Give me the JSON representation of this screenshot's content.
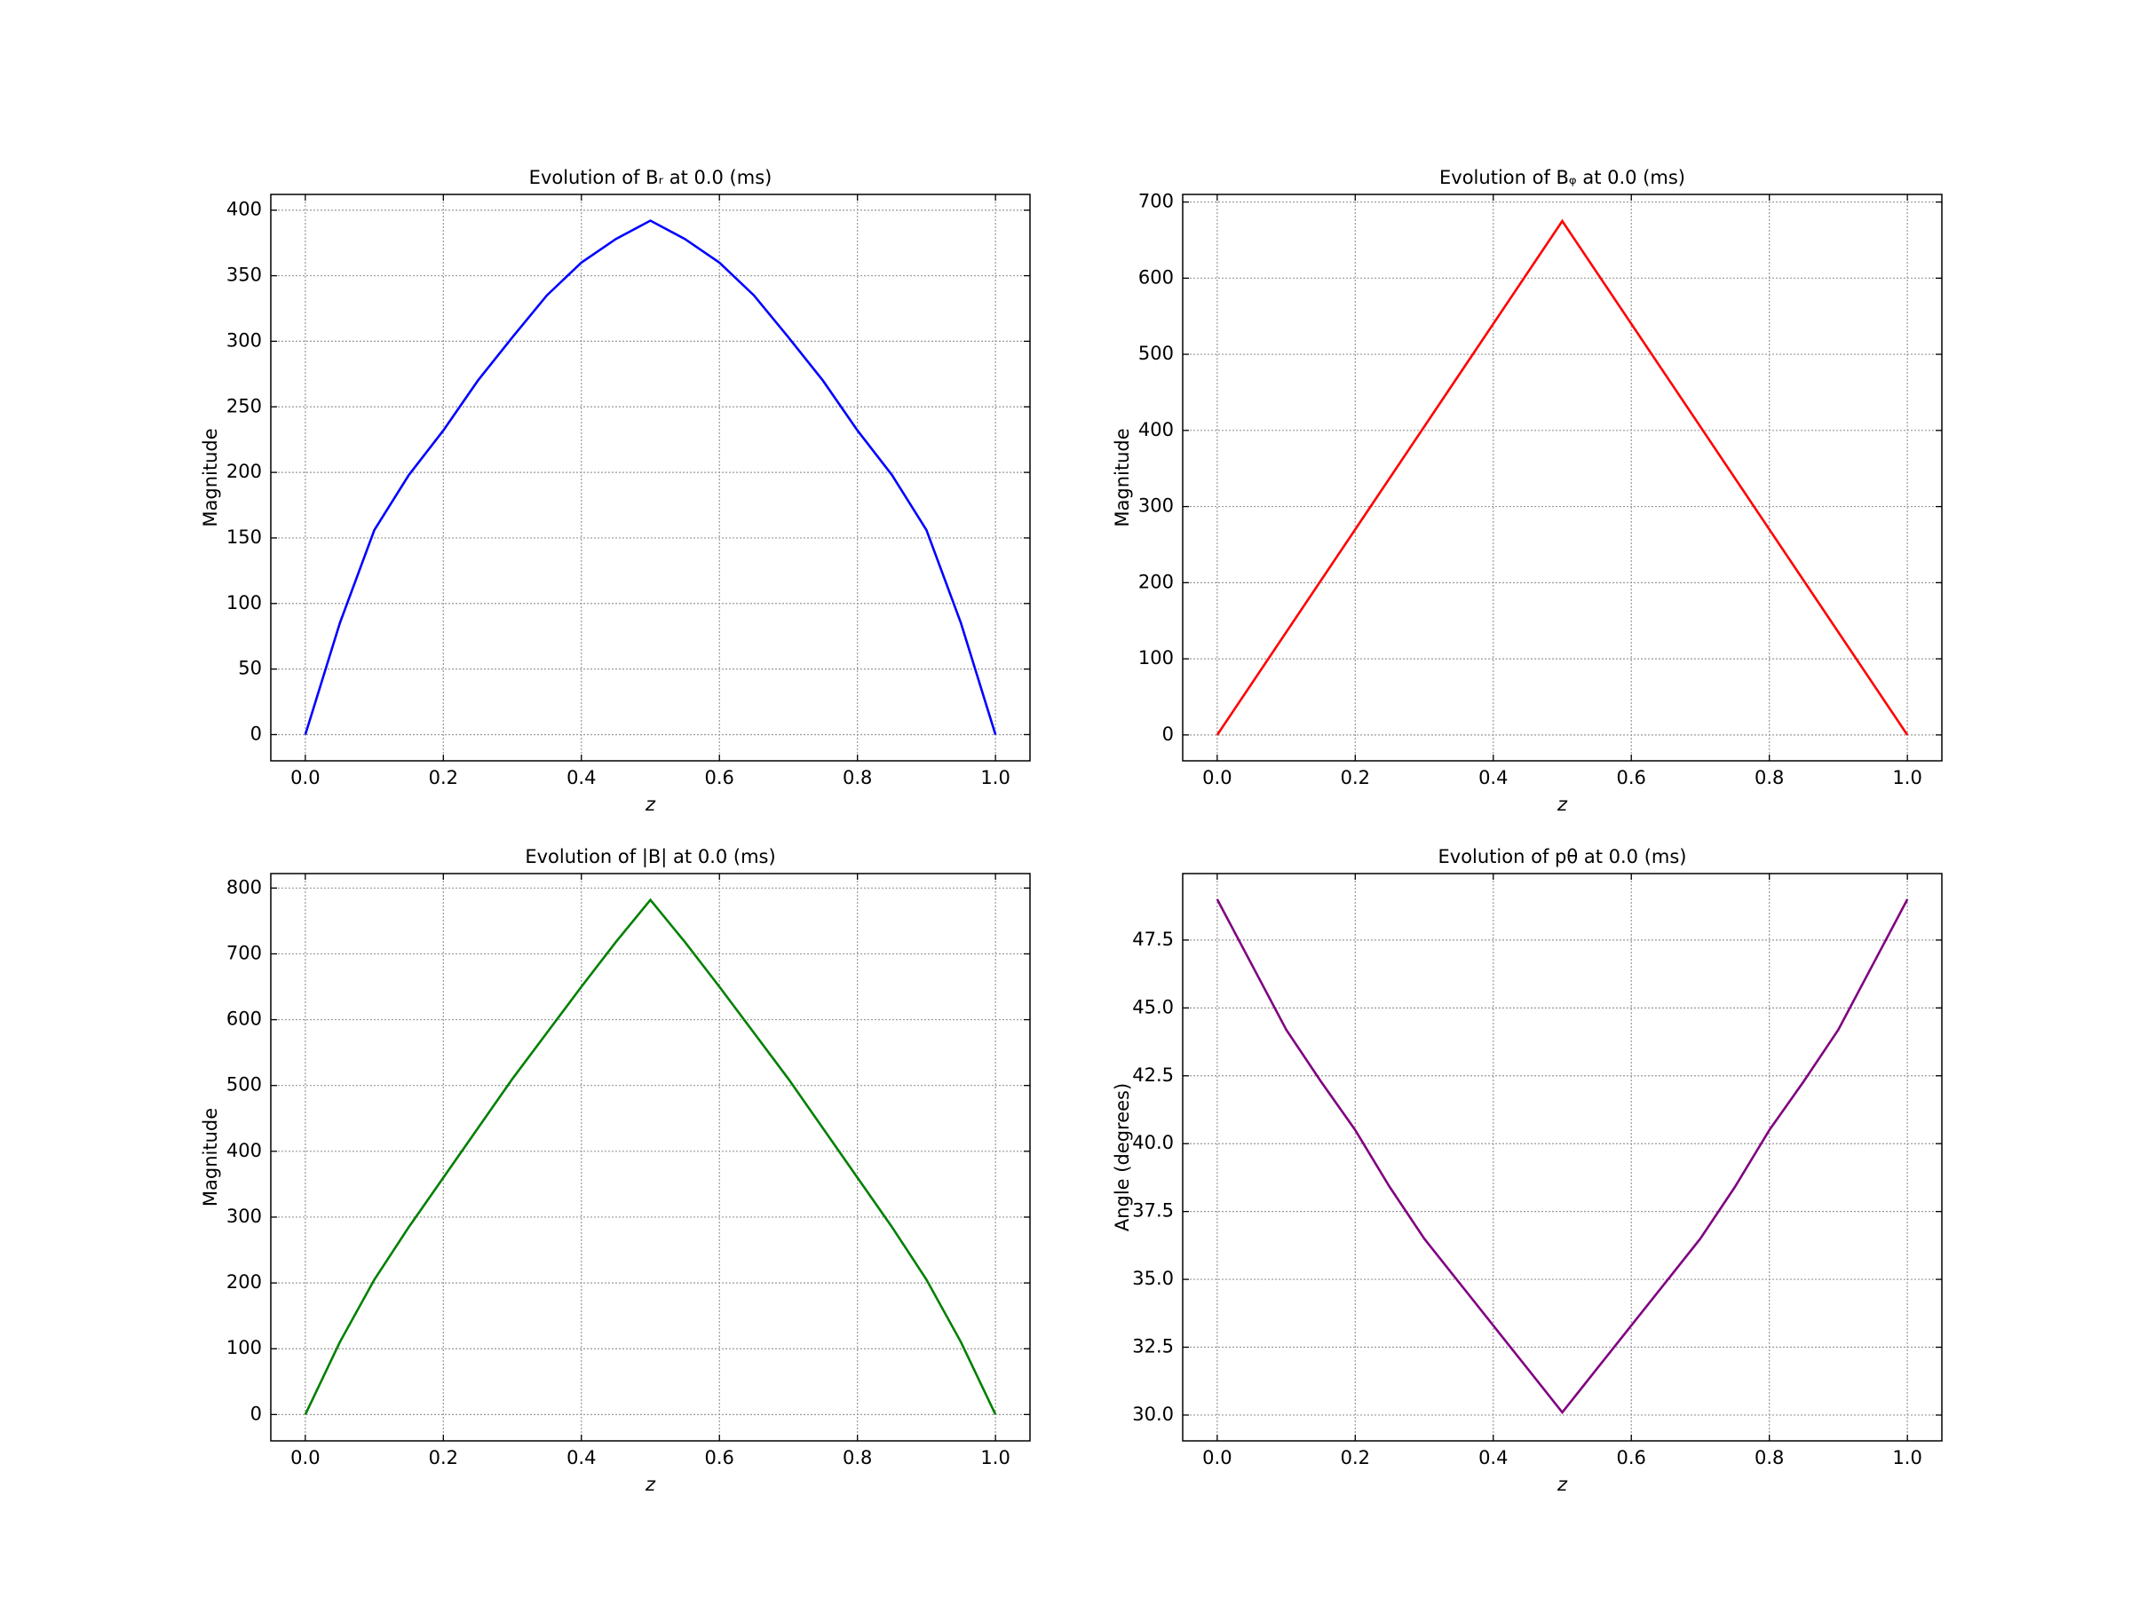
{
  "chart_data": [
    {
      "type": "line",
      "title": "Evolution of Bᵣ at 0.0 (ms)",
      "x_label": "z",
      "y_label": "Magnitude",
      "x": [
        0,
        0.05,
        0.1,
        0.15,
        0.2,
        0.25,
        0.3,
        0.35,
        0.4,
        0.45,
        0.5,
        0.55,
        0.6,
        0.65,
        0.7,
        0.75,
        0.8,
        0.85,
        0.9,
        0.95,
        1
      ],
      "series": [
        {
          "name": "Br",
          "color": "#0000ff",
          "values": [
            0,
            85,
            156,
            198,
            232,
            270,
            303,
            335,
            360,
            378,
            392,
            378,
            360,
            335,
            303,
            270,
            232,
            198,
            156,
            85,
            0
          ]
        }
      ],
      "xlim": [
        -0.05,
        1.05
      ],
      "ylim": [
        -20,
        412
      ],
      "xticks": [
        {
          "value": 0,
          "label": "0.0"
        },
        0.2,
        0.4,
        0.6,
        0.8,
        {
          "value": 1,
          "label": "1.0"
        }
      ],
      "yticks": [
        0,
        50,
        100,
        150,
        200,
        250,
        300,
        350,
        400
      ],
      "grid": true
    },
    {
      "type": "line",
      "title": "Evolution of Bᵩ at 0.0 (ms)",
      "x_label": "z",
      "y_label": "Magnitude",
      "x": [
        0,
        0.5,
        1
      ],
      "series": [
        {
          "name": "Bphi",
          "color": "#ff0000",
          "values": [
            0,
            675,
            0
          ]
        }
      ],
      "xlim": [
        -0.05,
        1.05
      ],
      "ylim": [
        -34,
        710
      ],
      "xticks": [
        {
          "value": 0,
          "label": "0.0"
        },
        0.2,
        0.4,
        0.6,
        0.8,
        {
          "value": 1,
          "label": "1.0"
        }
      ],
      "yticks": [
        0,
        100,
        200,
        300,
        400,
        500,
        600,
        700
      ],
      "grid": true
    },
    {
      "type": "line",
      "title": "Evolution of |B| at 0.0 (ms)",
      "x_label": "z",
      "y_label": "Magnitude",
      "x": [
        0,
        0.05,
        0.1,
        0.15,
        0.2,
        0.25,
        0.3,
        0.35,
        0.4,
        0.45,
        0.5,
        0.55,
        0.6,
        0.65,
        0.7,
        0.75,
        0.8,
        0.85,
        0.9,
        0.95,
        1
      ],
      "series": [
        {
          "name": "|B|",
          "color": "#008000",
          "values": [
            0,
            110,
            205,
            285,
            360,
            435,
            510,
            580,
            650,
            718,
            782,
            718,
            650,
            580,
            510,
            435,
            360,
            285,
            205,
            110,
            0
          ]
        }
      ],
      "xlim": [
        -0.05,
        1.05
      ],
      "ylim": [
        -40,
        822
      ],
      "xticks": [
        {
          "value": 0,
          "label": "0.0"
        },
        0.2,
        0.4,
        0.6,
        0.8,
        {
          "value": 1,
          "label": "1.0"
        }
      ],
      "yticks": [
        0,
        100,
        200,
        300,
        400,
        500,
        600,
        700,
        800
      ],
      "grid": true
    },
    {
      "type": "line",
      "title": "Evolution of pθ at 0.0 (ms)",
      "x_label": "z",
      "y_label": "Angle (degrees)",
      "x": [
        0,
        0.05,
        0.1,
        0.15,
        0.2,
        0.25,
        0.3,
        0.35,
        0.4,
        0.45,
        0.5,
        0.55,
        0.6,
        0.65,
        0.7,
        0.75,
        0.8,
        0.85,
        0.9,
        0.95,
        1
      ],
      "series": [
        {
          "name": "p_theta",
          "color": "#800080",
          "values": [
            49,
            46.6,
            44.2,
            42.3,
            40.5,
            38.4,
            36.5,
            34.9,
            33.3,
            31.7,
            30.1,
            31.7,
            33.3,
            34.9,
            36.5,
            38.4,
            40.5,
            42.3,
            44.2,
            46.6,
            49
          ]
        }
      ],
      "xlim": [
        -0.05,
        1.05
      ],
      "ylim": [
        29.05,
        49.95
      ],
      "xticks": [
        {
          "value": 0,
          "label": "0.0"
        },
        0.2,
        0.4,
        0.6,
        0.8,
        {
          "value": 1,
          "label": "1.0"
        }
      ],
      "yticks": [
        {
          "value": 30,
          "label": "30.0"
        },
        32.5,
        {
          "value": 35,
          "label": "35.0"
        },
        37.5,
        {
          "value": 40,
          "label": "40.0"
        },
        42.5,
        {
          "value": 45,
          "label": "45.0"
        },
        47.5
      ],
      "grid": true
    }
  ]
}
